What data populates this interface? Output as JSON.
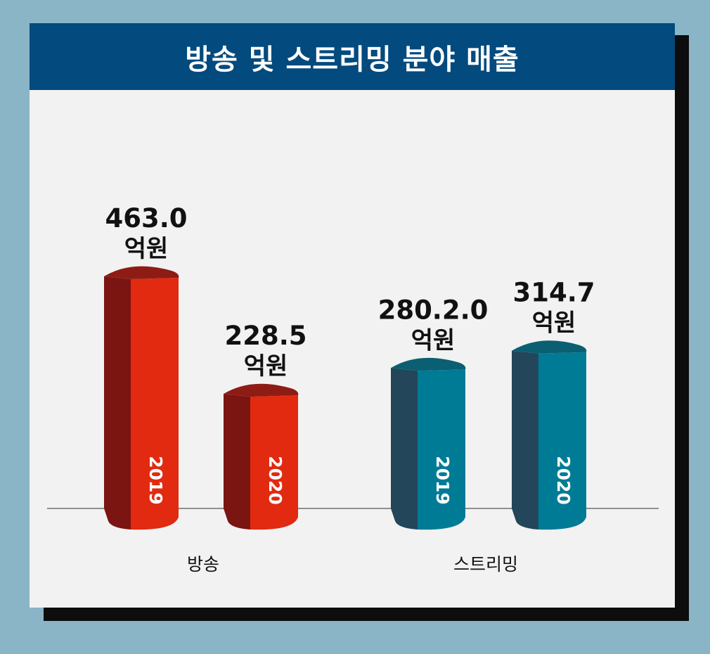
{
  "title": "방송 및 스트리밍 분야 매출",
  "colors": {
    "page_bg": "#89b5c6",
    "title_bg": "#034a7e",
    "broadcast_front": "#e12a10",
    "broadcast_side": "#7a1512",
    "broadcast_top": "#8e1c15",
    "streaming_front": "#007b96",
    "streaming_side": "#23465a",
    "streaming_top": "#0b5f72"
  },
  "chart_data": {
    "type": "bar",
    "title": "방송 및 스트리밍 분야 매출",
    "categories": [
      "방송",
      "스트리밍"
    ],
    "series_years": [
      "2019",
      "2020"
    ],
    "bars": [
      {
        "category": "방송",
        "year": "2019",
        "value": 463.0,
        "label": "463.0",
        "unit": "억원"
      },
      {
        "category": "방송",
        "year": "2020",
        "value": 228.5,
        "label": "228.5",
        "unit": "억원"
      },
      {
        "category": "스트리밍",
        "year": "2019",
        "value": 280.2,
        "label": "280.2.0",
        "unit": "억원"
      },
      {
        "category": "스트리밍",
        "year": "2020",
        "value": 314.7,
        "label": "314.7",
        "unit": "억원"
      }
    ],
    "grid": false,
    "legend": "none"
  }
}
